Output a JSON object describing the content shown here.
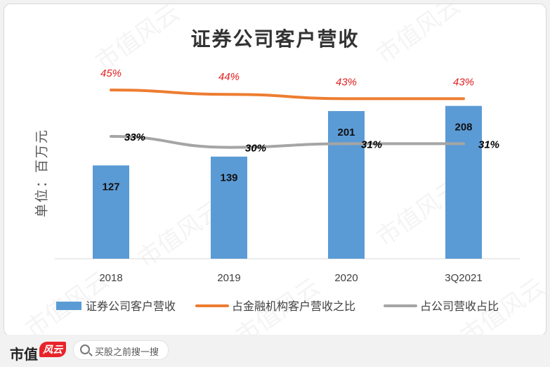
{
  "chart_data": {
    "type": "bar",
    "title": "证券公司客户营收",
    "ylabel": "单位：百万元",
    "categories": [
      "2018",
      "2019",
      "2020",
      "3Q2021"
    ],
    "bar_series": {
      "name": "证券公司客户营收",
      "values": [
        127,
        139,
        201,
        208
      ],
      "color": "#5b9bd5"
    },
    "line_series": [
      {
        "name": "占金融机构客户营收之比",
        "values": [
          45,
          44,
          43,
          43
        ],
        "labels": [
          "45%",
          "44%",
          "43%",
          "43%"
        ],
        "color": "#ed7d31",
        "label_color": "#e02020"
      },
      {
        "name": "占公司营收占比",
        "values": [
          33,
          30,
          31,
          31
        ],
        "labels": [
          "33%",
          "30%",
          "31%",
          "31%"
        ],
        "color": "#a5a5a5",
        "label_color": "#000000"
      }
    ],
    "legend_position": "bottom"
  },
  "watermark_text": "市值风云",
  "footer": {
    "brand": "市值",
    "brand_mark": "风云",
    "search_placeholder": "买股之前搜一搜",
    "search_icon": "search-icon"
  }
}
